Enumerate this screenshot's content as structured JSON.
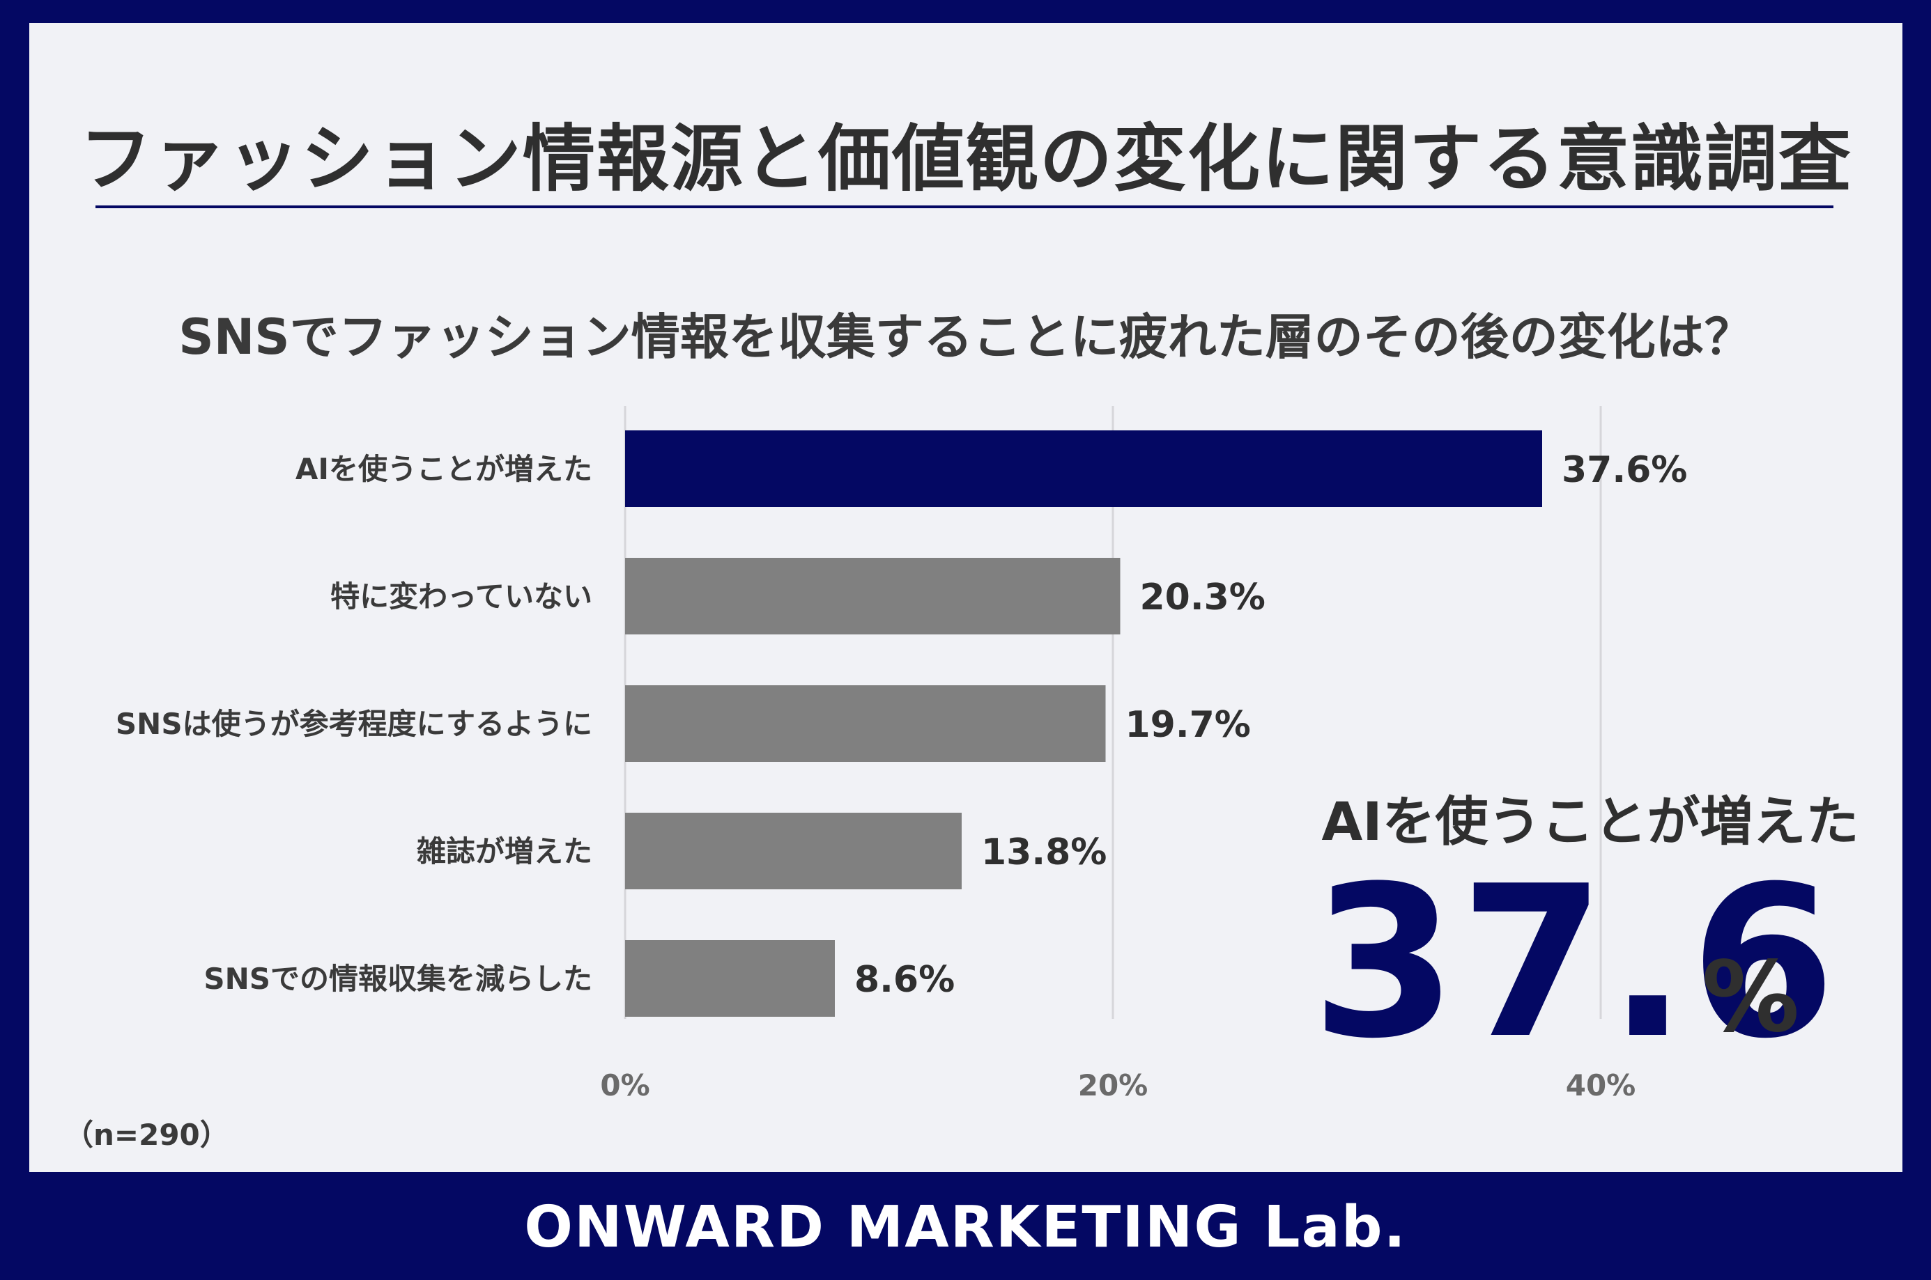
{
  "header": {
    "title": "ファッション情報源と価値観の変化に関する意識調査"
  },
  "chart_data": {
    "type": "bar",
    "orientation": "horizontal",
    "title": "SNSでファッション情報を収集することに疲れた層のその後の変化は？",
    "categories": [
      "AIを使うことが増えた",
      "特に変わっていない",
      "SNSは使うが参考程度にするように",
      "雑誌が増えた",
      "SNSでの情報収集を減らした"
    ],
    "values": [
      37.6,
      20.3,
      19.7,
      13.8,
      8.6
    ],
    "value_labels": [
      "37.6%",
      "20.3%",
      "19.7%",
      "13.8%",
      "8.6%"
    ],
    "xlim": [
      0,
      40
    ],
    "ticks": [
      "0%",
      "20%",
      "40%"
    ],
    "grid": true,
    "colors": {
      "highlight": "#040863",
      "default": "#808080"
    },
    "highlight_index": 0,
    "note": "（n=290）"
  },
  "callout": {
    "label": "AIを使うことが増えた",
    "value": "37.6",
    "unit": "%"
  },
  "footer": {
    "brand": "ONWARD MARKETING Lab."
  }
}
